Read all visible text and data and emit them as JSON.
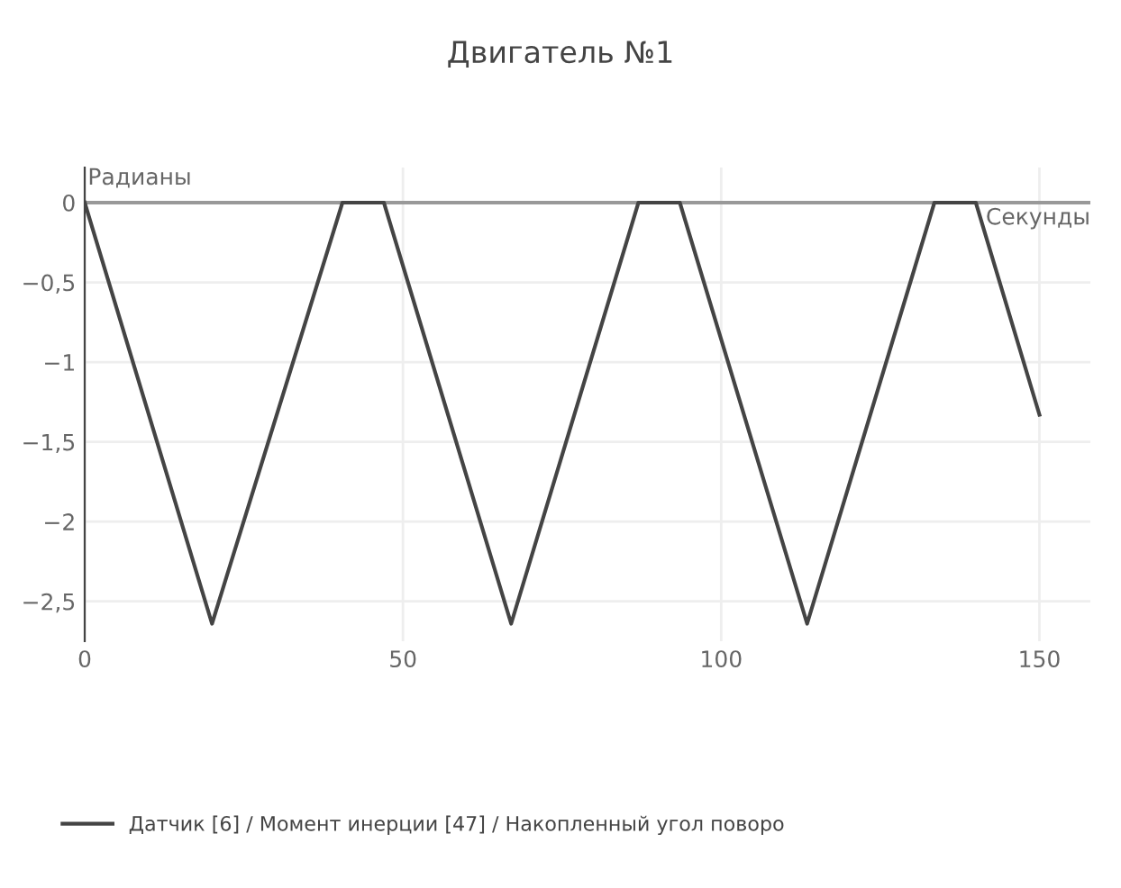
{
  "chart_data": {
    "type": "line",
    "title": "Двигатель №1",
    "xlabel": "Секунды",
    "ylabel": "Радианы",
    "x": [
      0,
      20,
      40.5,
      47,
      67,
      87,
      93.5,
      113.5,
      133.5,
      140,
      150
    ],
    "series": [
      {
        "name": "Датчик [6] / Момент инерции [47] / Накопленный угол поворо",
        "color": "#444444",
        "values": [
          0,
          -2.64,
          0,
          0,
          -2.64,
          0,
          0,
          -2.64,
          0,
          0,
          -1.33
        ]
      }
    ],
    "xlim": [
      0,
      158
    ],
    "ylim": [
      -2.75,
      0.22
    ],
    "xticks": [
      0,
      50,
      100,
      150
    ],
    "yticks": [
      {
        "value": 0,
        "label": "0"
      },
      {
        "value": -0.5,
        "label": "−0,5"
      },
      {
        "value": -1,
        "label": "−1"
      },
      {
        "value": -1.5,
        "label": "−1,5"
      },
      {
        "value": -2,
        "label": "−2"
      },
      {
        "value": -2.5,
        "label": "−2,5"
      }
    ],
    "grid": true,
    "legend": "bottom",
    "marker": "none",
    "line_style": "solid"
  }
}
